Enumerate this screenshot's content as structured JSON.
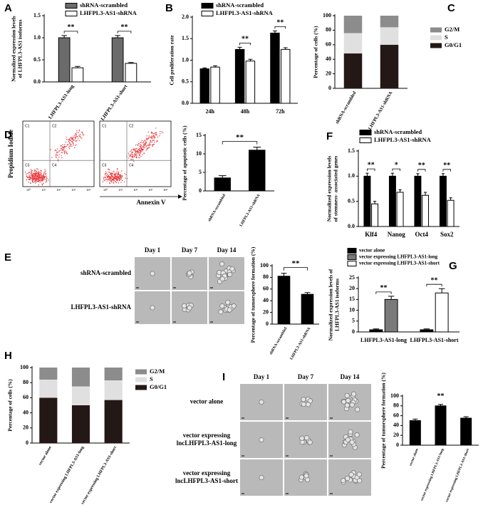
{
  "chart_data": [
    {
      "panel": "A",
      "type": "bar",
      "ylabel": "Normalized expression levels of LHFPL3-AS1 isoforms",
      "categories": [
        "LHFPL3-AS1-long",
        "LHFPL3-AS1-short"
      ],
      "series": [
        {
          "name": "shRNA-scrambled",
          "color": "#6b6b6b",
          "values": [
            1.0,
            1.0
          ],
          "errors": [
            0.05,
            0.05
          ]
        },
        {
          "name": "LHFPL3-AS1-shRNA",
          "color": "#ffffff",
          "values": [
            0.32,
            0.42
          ],
          "errors": [
            0.03,
            0.02
          ]
        }
      ],
      "significance": [
        "**",
        "**"
      ],
      "ylim": [
        0,
        1.5
      ],
      "yticks": [
        {
          "value": 0,
          "label": "0.0"
        },
        {
          "value": 0.5,
          "label": "0.5"
        },
        {
          "value": 1,
          "label": "1.0"
        },
        {
          "value": 1.5,
          "label": "1.5"
        }
      ]
    },
    {
      "panel": "B",
      "type": "bar",
      "ylabel": "Cell proliferation rate",
      "categories": [
        "24h",
        "48h",
        "72h"
      ],
      "series": [
        {
          "name": "shRNA-scrambled",
          "color": "#000000",
          "values": [
            0.8,
            1.25,
            1.63
          ],
          "errors": [
            0.02,
            0.05,
            0.05
          ]
        },
        {
          "name": "LHFPL3-AS1-shRNA",
          "color": "#ffffff",
          "values": [
            0.84,
            0.98,
            1.25
          ],
          "errors": [
            0.03,
            0.04,
            0.04
          ]
        }
      ],
      "significance": [
        null,
        "**",
        "**"
      ],
      "ylim": [
        0,
        2
      ],
      "yticks": [
        {
          "value": 0,
          "label": "0.0"
        },
        {
          "value": 0.5,
          "label": "0.5"
        },
        {
          "value": 1,
          "label": "1.0"
        },
        {
          "value": 1.5,
          "label": "1.5"
        },
        {
          "value": 2,
          "label": "2.0"
        }
      ]
    },
    {
      "panel": "C",
      "type": "bar",
      "stacked": true,
      "ylabel": "Percentage of cells (%)",
      "categories": [
        "shRNA-scrambled",
        "LHFPL3-AS1-shRNA"
      ],
      "series": [
        {
          "name": "G0/G1",
          "color": "#231815",
          "values": [
            48,
            60
          ]
        },
        {
          "name": "S",
          "color": "#e0e0e0",
          "values": [
            28,
            24
          ]
        },
        {
          "name": "G2/M",
          "color": "#8c8c8c",
          "values": [
            24,
            16
          ]
        }
      ],
      "ylim": [
        0,
        100
      ],
      "yticks": [
        0,
        20,
        40,
        60,
        80,
        100
      ]
    },
    {
      "panel": "D",
      "type": "bar",
      "ylabel": "Percentage of apoptotic cells (%)",
      "categories": [
        "shRNA-scrambled",
        "LHFPL3-AS1-shRNA"
      ],
      "values": [
        3.5,
        11.0
      ],
      "errors": [
        0.6,
        0.8
      ],
      "color": "#000000",
      "significance": "**",
      "ylim": [
        0,
        15
      ],
      "yticks": [
        0,
        5,
        10,
        15
      ]
    },
    {
      "panel": "F",
      "type": "bar",
      "ylabel": "Normalized expression levels of stemness- associated genes",
      "categories": [
        "Klf4",
        "Nanog",
        "Oct4",
        "Sox2"
      ],
      "series": [
        {
          "name": "shRNA-scrambled",
          "color": "#000000",
          "values": [
            1.0,
            1.0,
            1.0,
            1.0
          ],
          "errors": [
            0.06,
            0.06,
            0.05,
            0.05
          ]
        },
        {
          "name": "LHFPL3-AS1-shRNA",
          "color": "#ffffff",
          "values": [
            0.45,
            0.68,
            0.62,
            0.52
          ],
          "errors": [
            0.05,
            0.05,
            0.06,
            0.05
          ]
        }
      ],
      "significance": [
        "**",
        "*",
        "**",
        "**"
      ],
      "ylim": [
        0,
        1.5
      ],
      "yticks": [
        {
          "value": 0,
          "label": "0.0"
        },
        {
          "value": 0.5,
          "label": "0.5"
        },
        {
          "value": 1,
          "label": "1.0"
        },
        {
          "value": 1.5,
          "label": "1.5"
        }
      ]
    },
    {
      "panel": "E",
      "type": "bar",
      "ylabel": "Percentage of tumorsphere formation (%)",
      "categories": [
        "shRNA-scrambled",
        "LHFPL3-AS1-shRNA"
      ],
      "values": [
        82,
        51
      ],
      "errors": [
        5,
        3
      ],
      "color": "#000000",
      "significance": "**",
      "ylim": [
        0,
        100
      ],
      "yticks": [
        0,
        20,
        40,
        60,
        80,
        100
      ]
    },
    {
      "panel": "G",
      "type": "bar",
      "ylabel": "Normalized expression levels of LHFPL3-AS1 isoforms",
      "categories": [
        "LHFPL3-AS1-long",
        "LHFPL3-AS1-short"
      ],
      "series": [
        {
          "name": "vector alone",
          "color": "#000000",
          "values": [
            1,
            1
          ],
          "errors": [
            0.4,
            0.4
          ]
        },
        {
          "name": "vector expressing LHFPL3-AS1-long",
          "color": "#7a7a7a",
          "values": [
            15,
            null
          ],
          "errors": [
            1.5,
            null
          ]
        },
        {
          "name": "vector expressing LHFPL3-AS1-short",
          "color": "#ffffff",
          "values": [
            null,
            18
          ],
          "errors": [
            null,
            2
          ]
        }
      ],
      "significance": [
        "**",
        "**"
      ],
      "ylim": [
        0,
        25
      ],
      "yticks": [
        0,
        5,
        10,
        15,
        20,
        25
      ]
    },
    {
      "panel": "H",
      "type": "bar",
      "stacked": true,
      "ylabel": "Percentage of cells (%)",
      "categories": [
        "vector alone",
        "vector expressing LHFPL3-AS1-long",
        "vector expressing LHFPL3-AS1-short"
      ],
      "series": [
        {
          "name": "G0/G1",
          "color": "#231815",
          "values": [
            60,
            50,
            57
          ]
        },
        {
          "name": "S",
          "color": "#e0e0e0",
          "values": [
            24,
            25,
            26
          ]
        },
        {
          "name": "G2/M",
          "color": "#8c8c8c",
          "values": [
            16,
            25,
            17
          ]
        }
      ],
      "ylim": [
        0,
        100
      ],
      "yticks": [
        0,
        20,
        40,
        60,
        80,
        100
      ]
    },
    {
      "panel": "I",
      "type": "bar",
      "ylabel": "Percentage of tumorsphere formation (%)",
      "categories": [
        "vector alone",
        "vector expressing LHFPL3-AS1-long",
        "vector expressing LHFPL3-AS1-short"
      ],
      "values": [
        50,
        80,
        55
      ],
      "errors": [
        3,
        3,
        3
      ],
      "color": "#000000",
      "significance": [
        null,
        "**",
        null
      ],
      "ylim": [
        0,
        100
      ],
      "yticks": [
        0,
        20,
        40,
        60,
        80,
        100
      ]
    }
  ],
  "figures": [
    {
      "panel": "D",
      "type": "flow",
      "ylabel": "Propidium Iodide",
      "xlabel": "Annexin V",
      "quadrants": [
        "C1",
        "C2",
        "C3",
        "C4"
      ],
      "ticks": [
        "10⁰",
        "10¹",
        "10²",
        "10³",
        "10⁴"
      ]
    },
    {
      "panel": "E",
      "type": "micrographs",
      "columns": [
        "Day 1",
        "Day 7",
        "Day 14"
      ],
      "rows": [
        "shRNA-scrambled",
        "LHFPL3-AS1-shRNA"
      ]
    },
    {
      "panel": "I",
      "type": "micrographs",
      "columns": [
        "Day 1",
        "Day 7",
        "Day 14"
      ],
      "rows": [
        "vector alone",
        "vector expressing lncLHFPL3-AS1-long",
        "vector expressing lncLHFPL3-AS1-short"
      ]
    }
  ]
}
